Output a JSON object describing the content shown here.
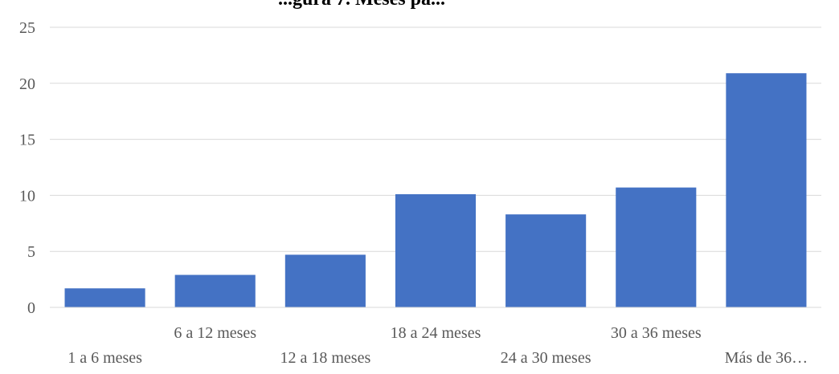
{
  "chart_data": {
    "type": "bar",
    "title": "...gura 7. Meses pa...",
    "categories": [
      "1 a 6 meses",
      "6 a 12 meses",
      "12 a 18 meses",
      "18 a 24 meses",
      "24 a 30 meses",
      "30 a 36 meses",
      "Más de 36…"
    ],
    "values": [
      1.7,
      2.9,
      4.7,
      10.1,
      8.3,
      10.7,
      20.9
    ],
    "y_ticks": [
      "0",
      "5",
      "10",
      "15",
      "20",
      "25"
    ],
    "ylim": [
      0,
      25
    ],
    "xlabel": "",
    "ylabel": "",
    "grid": true,
    "legend": "none",
    "colors": {
      "bar": "#4472c4",
      "grid": "#d9d9d9",
      "text": "#595959"
    }
  }
}
